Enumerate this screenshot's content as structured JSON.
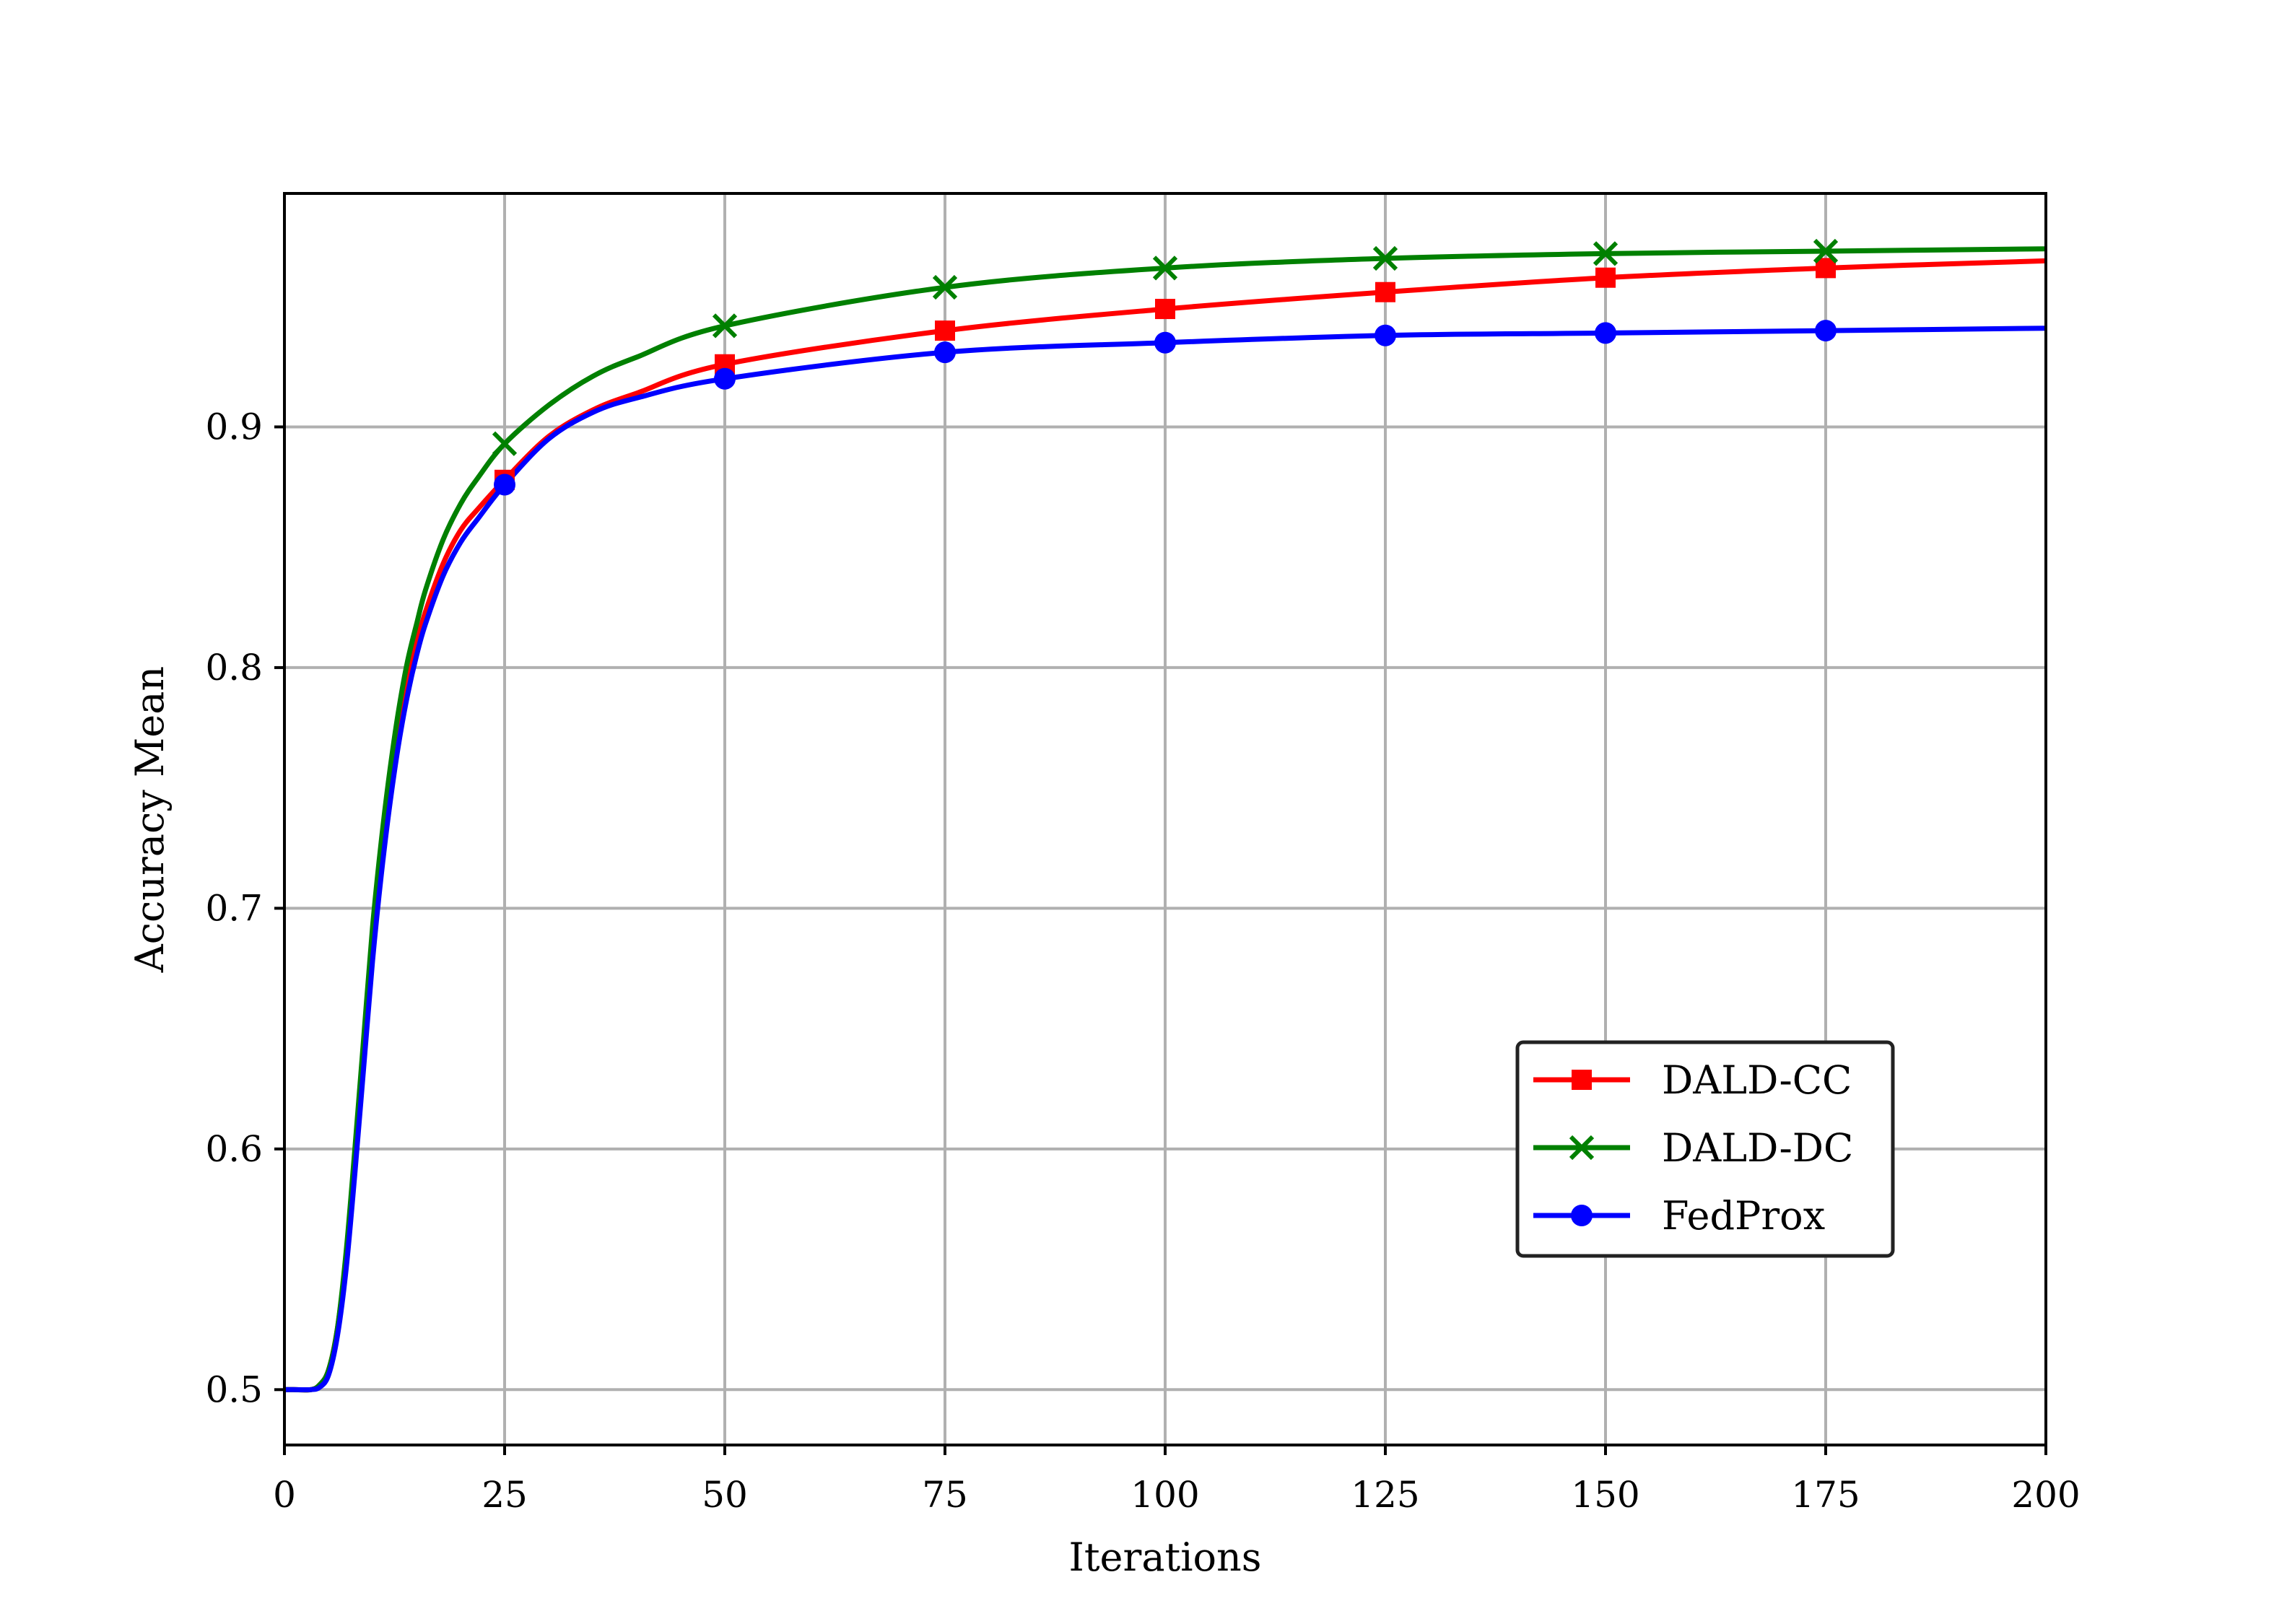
{
  "chart_data": {
    "type": "line",
    "title": "",
    "xlabel": "Iterations",
    "ylabel": "Accuracy Mean",
    "xlim": [
      0,
      200
    ],
    "ylim": [
      0.477,
      0.997
    ],
    "xticks": [
      0,
      25,
      50,
      75,
      100,
      125,
      150,
      175,
      200
    ],
    "xtick_labels": [
      "0",
      "25",
      "50",
      "75",
      "100",
      "125",
      "150",
      "175",
      "200"
    ],
    "yticks": [
      0.5,
      0.6,
      0.7,
      0.8,
      0.9
    ],
    "ytick_labels": [
      "0.5",
      "0.6",
      "0.7",
      "0.8",
      "0.9"
    ],
    "grid": true,
    "legend_position": "lower-right",
    "series": [
      {
        "name": "DALD-CC",
        "color": "#ff0000",
        "marker": "square",
        "x": [
          0,
          1,
          3,
          4,
          5,
          6,
          7,
          8,
          9,
          10,
          11,
          12,
          13,
          14,
          15,
          16,
          18,
          20,
          22,
          25,
          30,
          35,
          40,
          50,
          75,
          100,
          125,
          150,
          175,
          200
        ],
        "values": [
          0.5,
          0.5,
          0.5,
          0.502,
          0.508,
          0.525,
          0.555,
          0.595,
          0.64,
          0.685,
          0.72,
          0.75,
          0.775,
          0.795,
          0.81,
          0.823,
          0.843,
          0.857,
          0.866,
          0.878,
          0.896,
          0.907,
          0.914,
          0.926,
          0.94,
          0.949,
          0.956,
          0.962,
          0.966,
          0.969
        ],
        "marker_x": [
          25,
          50,
          75,
          100,
          125,
          150,
          175
        ]
      },
      {
        "name": "DALD-DC",
        "color": "#008000",
        "marker": "x",
        "x": [
          0,
          1,
          3,
          4,
          5,
          6,
          7,
          8,
          9,
          10,
          11,
          12,
          13,
          14,
          15,
          16,
          18,
          20,
          22,
          25,
          30,
          35,
          40,
          50,
          75,
          100,
          125,
          150,
          175,
          200
        ],
        "values": [
          0.5,
          0.5,
          0.5,
          0.502,
          0.508,
          0.525,
          0.557,
          0.6,
          0.646,
          0.692,
          0.728,
          0.758,
          0.783,
          0.803,
          0.818,
          0.832,
          0.853,
          0.868,
          0.879,
          0.893,
          0.909,
          0.921,
          0.929,
          0.942,
          0.958,
          0.966,
          0.97,
          0.972,
          0.973,
          0.974
        ],
        "marker_x": [
          25,
          50,
          75,
          100,
          125,
          150,
          175
        ]
      },
      {
        "name": "FedProx",
        "color": "#0000ff",
        "marker": "circle",
        "x": [
          0,
          1,
          3,
          4,
          5,
          6,
          7,
          8,
          9,
          10,
          11,
          12,
          13,
          14,
          15,
          16,
          18,
          20,
          22,
          25,
          30,
          35,
          40,
          50,
          75,
          100,
          125,
          150,
          175,
          200
        ],
        "values": [
          0.5,
          0.5,
          0.5,
          0.501,
          0.506,
          0.522,
          0.55,
          0.59,
          0.634,
          0.678,
          0.714,
          0.744,
          0.769,
          0.789,
          0.805,
          0.818,
          0.838,
          0.852,
          0.862,
          0.876,
          0.895,
          0.906,
          0.912,
          0.92,
          0.931,
          0.935,
          0.938,
          0.939,
          0.94,
          0.941
        ],
        "marker_x": [
          25,
          50,
          75,
          100,
          125,
          150,
          175
        ]
      }
    ]
  }
}
